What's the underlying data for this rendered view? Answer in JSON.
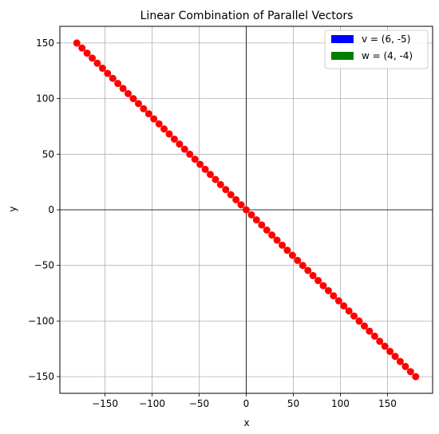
{
  "chart_data": {
    "type": "scatter",
    "title": "Linear Combination of Parallel Vectors",
    "xlabel": "x",
    "ylabel": "y",
    "xlim": [
      -198,
      198
    ],
    "ylim": [
      -165,
      165
    ],
    "xticks": [
      -150,
      -100,
      -50,
      0,
      50,
      100,
      150
    ],
    "yticks": [
      -150,
      -100,
      -50,
      0,
      50,
      100,
      150
    ],
    "grid": true,
    "legend_position": "top-right",
    "legend": [
      {
        "label": "v = (6, -5)",
        "color": "#0000ff"
      },
      {
        "label": "w = (4, -4)",
        "color": "#008000"
      }
    ],
    "points_color": "#ff0000",
    "series": [
      {
        "x": [
          -180,
          -174.5,
          -169.1,
          -163.6,
          -158.2,
          -152.7,
          -147.3,
          -141.8,
          -136.4,
          -130.9,
          -125.5,
          -120,
          -114.5,
          -109.1,
          -103.6,
          -98.2,
          -92.7,
          -87.3,
          -81.8,
          -76.4,
          -70.9,
          -65.5,
          -60,
          -54.5,
          -49.1,
          -43.6,
          -38.2,
          -32.7,
          -27.3,
          -21.8,
          -16.4,
          -10.9,
          -5.5,
          0,
          5.5,
          10.9,
          16.4,
          21.8,
          27.3,
          32.7,
          38.2,
          43.6,
          49.1,
          54.5,
          60,
          65.5,
          70.9,
          76.4,
          81.8,
          87.3,
          92.7,
          98.2,
          103.6,
          109.1,
          114.5,
          120,
          125.5,
          130.9,
          136.4,
          141.8,
          147.3,
          152.7,
          158.2,
          163.6,
          169.1,
          174.5,
          180
        ],
        "y": [
          150,
          145.5,
          140.9,
          136.4,
          131.8,
          127.3,
          122.7,
          118.2,
          113.6,
          109.1,
          104.5,
          100,
          95.5,
          90.9,
          86.4,
          81.8,
          77.3,
          72.7,
          68.2,
          63.6,
          59.1,
          54.5,
          50,
          45.5,
          40.9,
          36.4,
          31.8,
          27.3,
          22.7,
          18.2,
          13.6,
          9.1,
          4.5,
          0,
          -4.5,
          -9.1,
          -13.6,
          -18.2,
          -22.7,
          -27.3,
          -31.8,
          -36.4,
          -40.9,
          -45.5,
          -50,
          -54.5,
          -59.1,
          -63.6,
          -68.2,
          -72.7,
          -77.3,
          -81.8,
          -86.4,
          -90.9,
          -95.5,
          -100,
          -104.5,
          -109.1,
          -113.6,
          -118.2,
          -122.7,
          -127.3,
          -131.8,
          -136.4,
          -140.9,
          -145.5,
          -150
        ]
      }
    ]
  }
}
